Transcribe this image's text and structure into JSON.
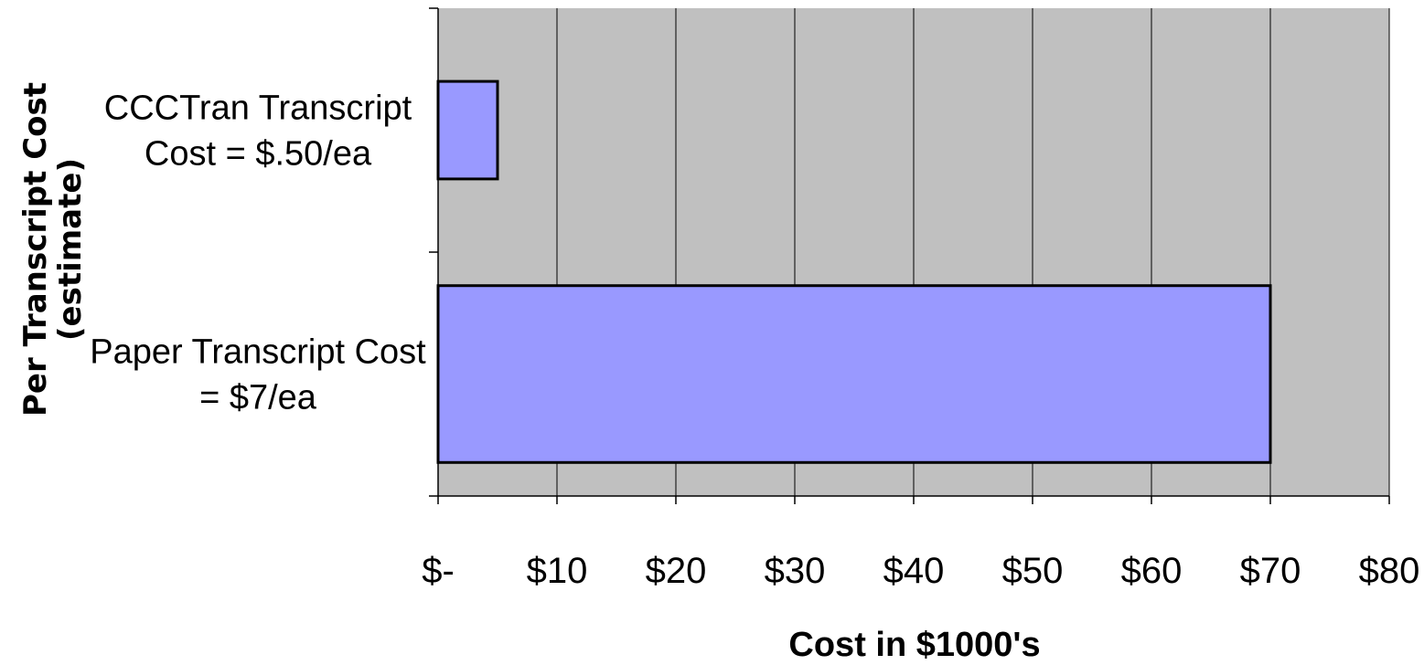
{
  "chart_data": {
    "type": "bar",
    "orientation": "horizontal",
    "categories": [
      [
        "CCCTran Transcript",
        "Cost = $.50/ea"
      ],
      [
        "Paper Transcript Cost",
        "= $7/ea"
      ]
    ],
    "values": [
      5,
      70
    ],
    "xlabel": "Cost in $1000's",
    "ylabel": [
      "Per Transcript Cost",
      "(estimate)"
    ],
    "xlim": [
      0,
      80
    ],
    "xticks": [
      0,
      10,
      20,
      30,
      40,
      50,
      60,
      70,
      80
    ],
    "xtick_labels": [
      "$-",
      "$10",
      "$20",
      "$30",
      "$40",
      "$50",
      "$60",
      "$70",
      "$80"
    ],
    "grid": true,
    "colors": {
      "plot_background": "#c0c0c0",
      "bar_fill": "#9999ff",
      "bar_stroke": "#000000",
      "gridline": "#000000"
    }
  }
}
